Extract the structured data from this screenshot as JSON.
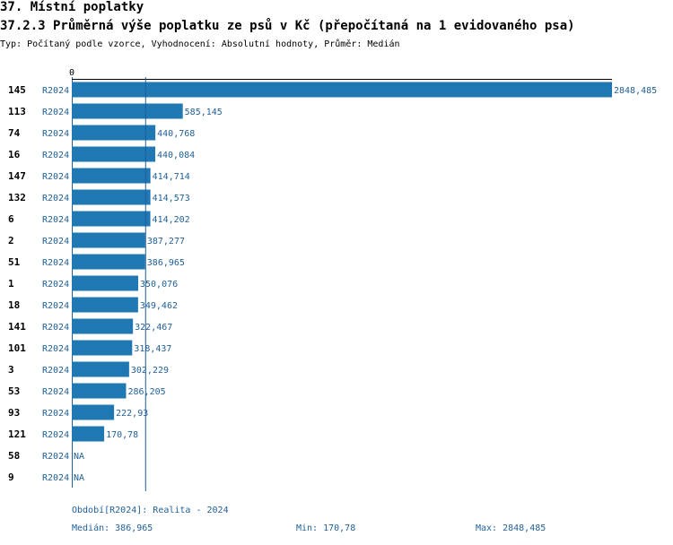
{
  "header": {
    "section_title": "37. Místní poplatky",
    "chart_title": "37.2.3 Průměrná výše poplatku ze psů v Kč (přepočítaná na 1 evidovaného psa)",
    "subtitle": "Typ: Počítaný podle vzorce, Vyhodnocení: Absolutní hodnoty, Průměr: Medián"
  },
  "colors": {
    "bar": "#1f77b4",
    "axis": "#1f5f99",
    "text_blue": "#1f5f99"
  },
  "chart_data": {
    "type": "bar",
    "orientation": "horizontal",
    "x_tick_labels": [
      "0"
    ],
    "categories": [
      "145",
      "113",
      "74",
      "16",
      "147",
      "132",
      "6",
      "2",
      "51",
      "1",
      "18",
      "141",
      "101",
      "3",
      "53",
      "93",
      "121",
      "58",
      "9"
    ],
    "period_labels": [
      "R2024",
      "R2024",
      "R2024",
      "R2024",
      "R2024",
      "R2024",
      "R2024",
      "R2024",
      "R2024",
      "R2024",
      "R2024",
      "R2024",
      "R2024",
      "R2024",
      "R2024",
      "R2024",
      "R2024",
      "R2024",
      "R2024"
    ],
    "values": [
      2848.485,
      585.145,
      440.768,
      440.084,
      414.714,
      414.573,
      414.202,
      387.277,
      386.965,
      350.076,
      349.462,
      322.467,
      318.437,
      302.229,
      286.205,
      222.93,
      170.78,
      null,
      null
    ],
    "value_labels": [
      "2848,485",
      "585,145",
      "440,768",
      "440,084",
      "414,714",
      "414,573",
      "414,202",
      "387,277",
      "386,965",
      "350,076",
      "349,462",
      "322,467",
      "318,437",
      "302,229",
      "286,205",
      "222,93",
      "170,78",
      "NA",
      "NA"
    ],
    "median": 386.965,
    "xlim": [
      0,
      2848.485
    ]
  },
  "footer": {
    "period_legend": "Období[R2024]: Realita - 2024",
    "median_label": "Medián: 386,965",
    "min_label": "Min: 170,78",
    "max_label": "Max: 2848,485"
  }
}
